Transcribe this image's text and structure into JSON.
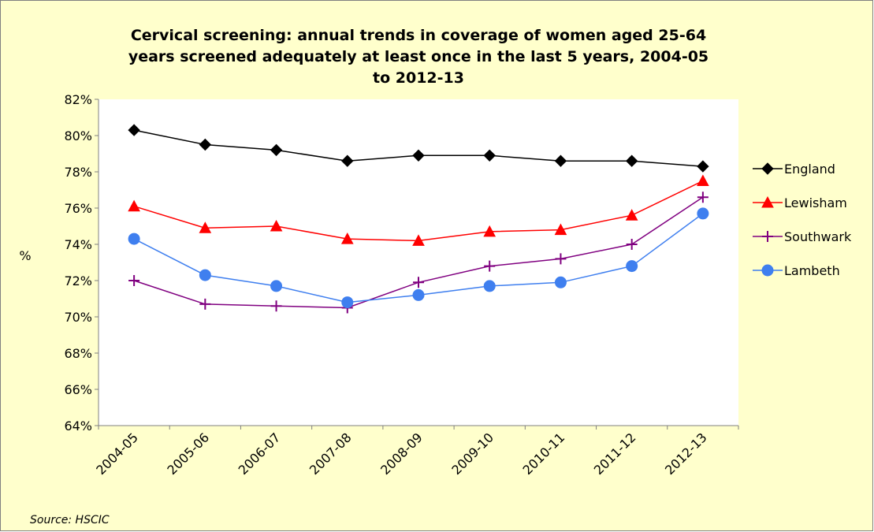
{
  "chart_data": {
    "type": "line",
    "title": [
      "Cervical screening: annual trends in coverage of women aged 25-64",
      "years screened adequately at least once in the last 5 years, 2004-05",
      "to 2012-13"
    ],
    "y_label": "%",
    "source": "Source: HSCIC",
    "categories": [
      "2004-05",
      "2005-06",
      "2006-07",
      "2007-08",
      "2008-09",
      "2009-10",
      "2010-11",
      "2011-12",
      "2012-13"
    ],
    "series": [
      {
        "name": "England",
        "color": "#000000",
        "marker": "diamond",
        "values": [
          80.3,
          79.5,
          79.2,
          78.6,
          78.9,
          78.9,
          78.6,
          78.6,
          78.3
        ]
      },
      {
        "name": "Lewisham",
        "color": "#ff0000",
        "marker": "triangle",
        "values": [
          76.1,
          74.9,
          75.0,
          74.3,
          74.2,
          74.7,
          74.8,
          75.6,
          77.5
        ]
      },
      {
        "name": "Southwark",
        "color": "#800080",
        "marker": "plus",
        "values": [
          72.0,
          70.7,
          70.6,
          70.5,
          71.9,
          72.8,
          73.2,
          74.0,
          76.6
        ]
      },
      {
        "name": "Lambeth",
        "color": "#3f7fef",
        "marker": "circle",
        "values": [
          74.3,
          72.3,
          71.7,
          70.8,
          71.2,
          71.7,
          71.9,
          72.8,
          75.7
        ]
      }
    ],
    "ylim": [
      64,
      82
    ],
    "yticks": [
      {
        "value": 64,
        "label": "64%"
      },
      {
        "value": 66,
        "label": "66%"
      },
      {
        "value": 68,
        "label": "68%"
      },
      {
        "value": 70,
        "label": "70%"
      },
      {
        "value": 72,
        "label": "72%"
      },
      {
        "value": 74,
        "label": "74%"
      },
      {
        "value": 76,
        "label": "76%"
      },
      {
        "value": 78,
        "label": "78%"
      },
      {
        "value": 80,
        "label": "80%"
      },
      {
        "value": 82,
        "label": "82%"
      }
    ],
    "grid": false,
    "legend": "right"
  }
}
